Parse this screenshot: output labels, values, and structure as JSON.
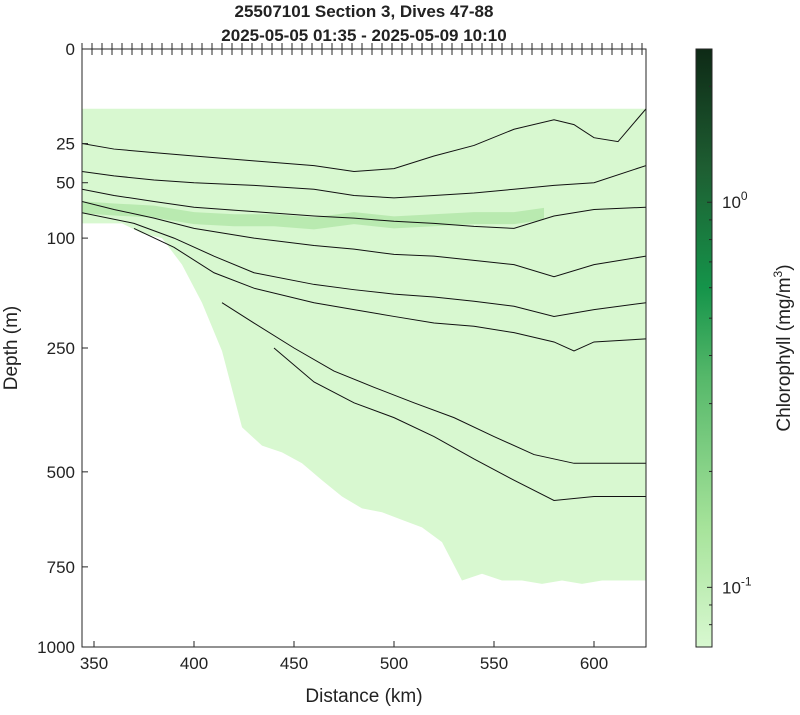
{
  "chart_data": {
    "type": "heatmap",
    "title_line1": "25507101 Section 3, Dives 47-88",
    "title_line2": "2025-05-05 01:35 - 2025-05-09 10:10",
    "xlabel": "Distance (km)",
    "ylabel": "Depth (m)",
    "colorbar_label": "Chlorophyll (mg/m",
    "colorbar_label_sup": "3",
    "colorbar_label_end": ")",
    "xlim": [
      344,
      626
    ],
    "ylim_depth": [
      0,
      1000
    ],
    "depth_scale": "sqrt",
    "x_ticks": [
      350,
      400,
      450,
      500,
      550,
      600
    ],
    "y_ticks": [
      0,
      25,
      50,
      100,
      250,
      500,
      750,
      1000
    ],
    "colorbar": {
      "scale": "log",
      "range": [
        0.07,
        2.5
      ],
      "tick_labels": [
        {
          "base": "10",
          "exp": "-1",
          "value": 0.1
        },
        {
          "base": "10",
          "exp": "0",
          "value": 1
        }
      ],
      "color_low": "#d8f8d0",
      "color_high": "#0e2a16"
    },
    "dive_positions_km": [
      344,
      349,
      354,
      359,
      364,
      369,
      374,
      379,
      384,
      389,
      394,
      399,
      404,
      409,
      414,
      419,
      424,
      429,
      434,
      439,
      444,
      449,
      454,
      459,
      464,
      469,
      474,
      479,
      484,
      489,
      494,
      499,
      504,
      509,
      514,
      519,
      524,
      529,
      534,
      539,
      544,
      549,
      554,
      559,
      564,
      569,
      574,
      579,
      584,
      589,
      594,
      599,
      604,
      609,
      614,
      619,
      624
    ],
    "data_top_depth_m": 10,
    "bottom_depth_profile": {
      "x": [
        344,
        364,
        374,
        384,
        394,
        404,
        414,
        424,
        434,
        444,
        454,
        464,
        474,
        484,
        494,
        504,
        514,
        524,
        534,
        544,
        554,
        564,
        574,
        584,
        594,
        604,
        614,
        626
      ],
      "depth": [
        85,
        85,
        95,
        100,
        130,
        180,
        255,
        400,
        440,
        455,
        480,
        520,
        560,
        590,
        600,
        620,
        640,
        680,
        790,
        770,
        790,
        790,
        800,
        790,
        800,
        790,
        790,
        790
      ]
    },
    "chlorophyll_max_layer": {
      "x": [
        344,
        360,
        380,
        400,
        420,
        440,
        460,
        480,
        500,
        520,
        540,
        560,
        575
      ],
      "depth": [
        70,
        72,
        74,
        80,
        82,
        82,
        85,
        80,
        84,
        82,
        80,
        80,
        76
      ],
      "value": 0.2
    },
    "contours": [
      {
        "x": [
          344,
          360,
          380,
          400,
          430,
          460,
          480,
          500,
          520,
          540,
          560,
          580,
          590,
          600,
          612,
          626
        ],
        "depth": [
          25,
          28,
          30,
          32,
          35,
          38,
          42,
          40,
          32,
          26,
          18,
          14,
          16,
          22,
          24,
          10
        ]
      },
      {
        "x": [
          344,
          360,
          380,
          400,
          430,
          460,
          480,
          500,
          520,
          540,
          560,
          580,
          600,
          626
        ],
        "depth": [
          42,
          45,
          48,
          50,
          52,
          55,
          60,
          62,
          60,
          58,
          55,
          52,
          50,
          38
        ]
      },
      {
        "x": [
          344,
          360,
          380,
          400,
          430,
          460,
          480,
          500,
          520,
          540,
          560,
          580,
          600,
          626
        ],
        "depth": [
          55,
          60,
          65,
          70,
          74,
          78,
          80,
          83,
          85,
          88,
          90,
          78,
          72,
          70
        ]
      },
      {
        "x": [
          344,
          360,
          380,
          400,
          430,
          460,
          480,
          500,
          520,
          540,
          560,
          580,
          600,
          626
        ],
        "depth": [
          65,
          72,
          80,
          90,
          100,
          108,
          112,
          118,
          120,
          125,
          130,
          145,
          130,
          120
        ]
      },
      {
        "x": [
          344,
          370,
          390,
          410,
          430,
          460,
          480,
          500,
          520,
          540,
          560,
          580,
          600,
          626
        ],
        "depth": [
          75,
          85,
          100,
          120,
          140,
          155,
          162,
          168,
          172,
          178,
          185,
          200,
          190,
          180
        ]
      },
      {
        "x": [
          370,
          390,
          410,
          430,
          460,
          480,
          500,
          520,
          540,
          560,
          580,
          590,
          600,
          626
        ],
        "depth": [
          90,
          110,
          140,
          160,
          180,
          190,
          200,
          210,
          215,
          225,
          240,
          255,
          240,
          235
        ]
      },
      {
        "x": [
          414,
          430,
          450,
          470,
          490,
          510,
          530,
          550,
          570,
          590,
          610,
          626
        ],
        "depth": [
          180,
          210,
          250,
          290,
          320,
          350,
          380,
          420,
          460,
          480,
          480,
          480
        ]
      },
      {
        "x": [
          440,
          460,
          480,
          500,
          520,
          540,
          560,
          580,
          600,
          626
        ],
        "depth": [
          250,
          310,
          350,
          380,
          420,
          470,
          520,
          570,
          560,
          560
        ]
      }
    ]
  }
}
